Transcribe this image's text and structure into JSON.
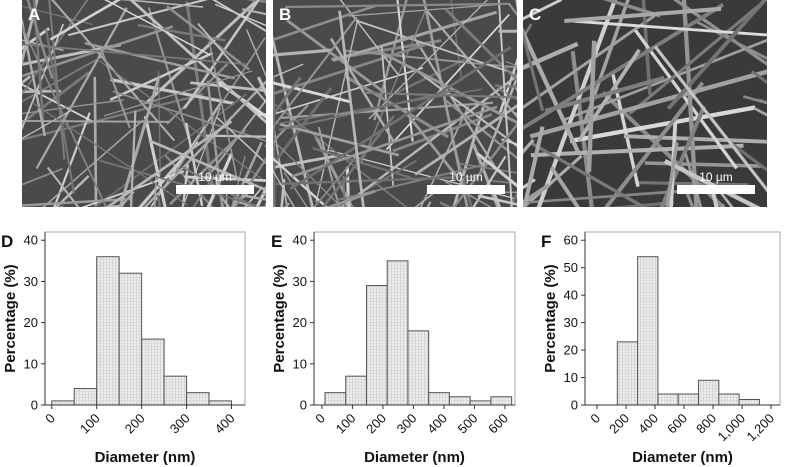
{
  "images": [
    {
      "label": "A",
      "scale_bar": "10 µm"
    },
    {
      "label": "B",
      "scale_bar": "10 µm"
    },
    {
      "label": "C",
      "scale_bar": "10 µm"
    }
  ],
  "chart_data": [
    {
      "type": "histogram",
      "panel_label": "D",
      "xlabel": "Diameter (nm)",
      "ylabel": "Percentage (%)",
      "bins": [
        0,
        50,
        100,
        150,
        200,
        250,
        300,
        350,
        400
      ],
      "values": [
        1,
        4,
        36,
        32,
        16,
        7,
        3,
        1
      ],
      "color": "#e4e4e4",
      "xlim": [
        -15,
        430
      ],
      "ylim": [
        0,
        42
      ],
      "xticks": [
        0,
        100,
        200,
        300,
        400
      ],
      "yticks": [
        0,
        10,
        20,
        30,
        40
      ]
    },
    {
      "type": "histogram",
      "panel_label": "E",
      "xlabel": "Diameter (nm)",
      "ylabel": "Percentage (%)",
      "bins": [
        10,
        78,
        146,
        214,
        282,
        350,
        418,
        486,
        554,
        622
      ],
      "values": [
        3,
        7,
        29,
        35,
        18,
        3,
        2,
        1,
        2
      ],
      "color": "#e4e4e4",
      "xlim": [
        -26,
        633
      ],
      "ylim": [
        0,
        42
      ],
      "xticks": [
        0,
        100,
        200,
        300,
        400,
        500,
        600
      ],
      "yticks": [
        0,
        10,
        20,
        30,
        40
      ]
    },
    {
      "type": "histogram",
      "panel_label": "F",
      "xlabel": "Diameter (nm)",
      "ylabel": "Percentage (%)",
      "bins": [
        140,
        280,
        420,
        560,
        700,
        840,
        980,
        1120
      ],
      "values": [
        23,
        54,
        4,
        4,
        9,
        4,
        2
      ],
      "color": "#e4e4e4",
      "xlim": [
        -83,
        1262
      ],
      "ylim": [
        0,
        63
      ],
      "xticks": [
        0,
        200,
        400,
        600,
        800,
        {
          "value": 1000,
          "label": "1,000"
        },
        {
          "value": 1200,
          "label": "1,200"
        }
      ],
      "yticks": [
        0,
        10,
        20,
        30,
        40,
        50,
        60
      ]
    }
  ]
}
